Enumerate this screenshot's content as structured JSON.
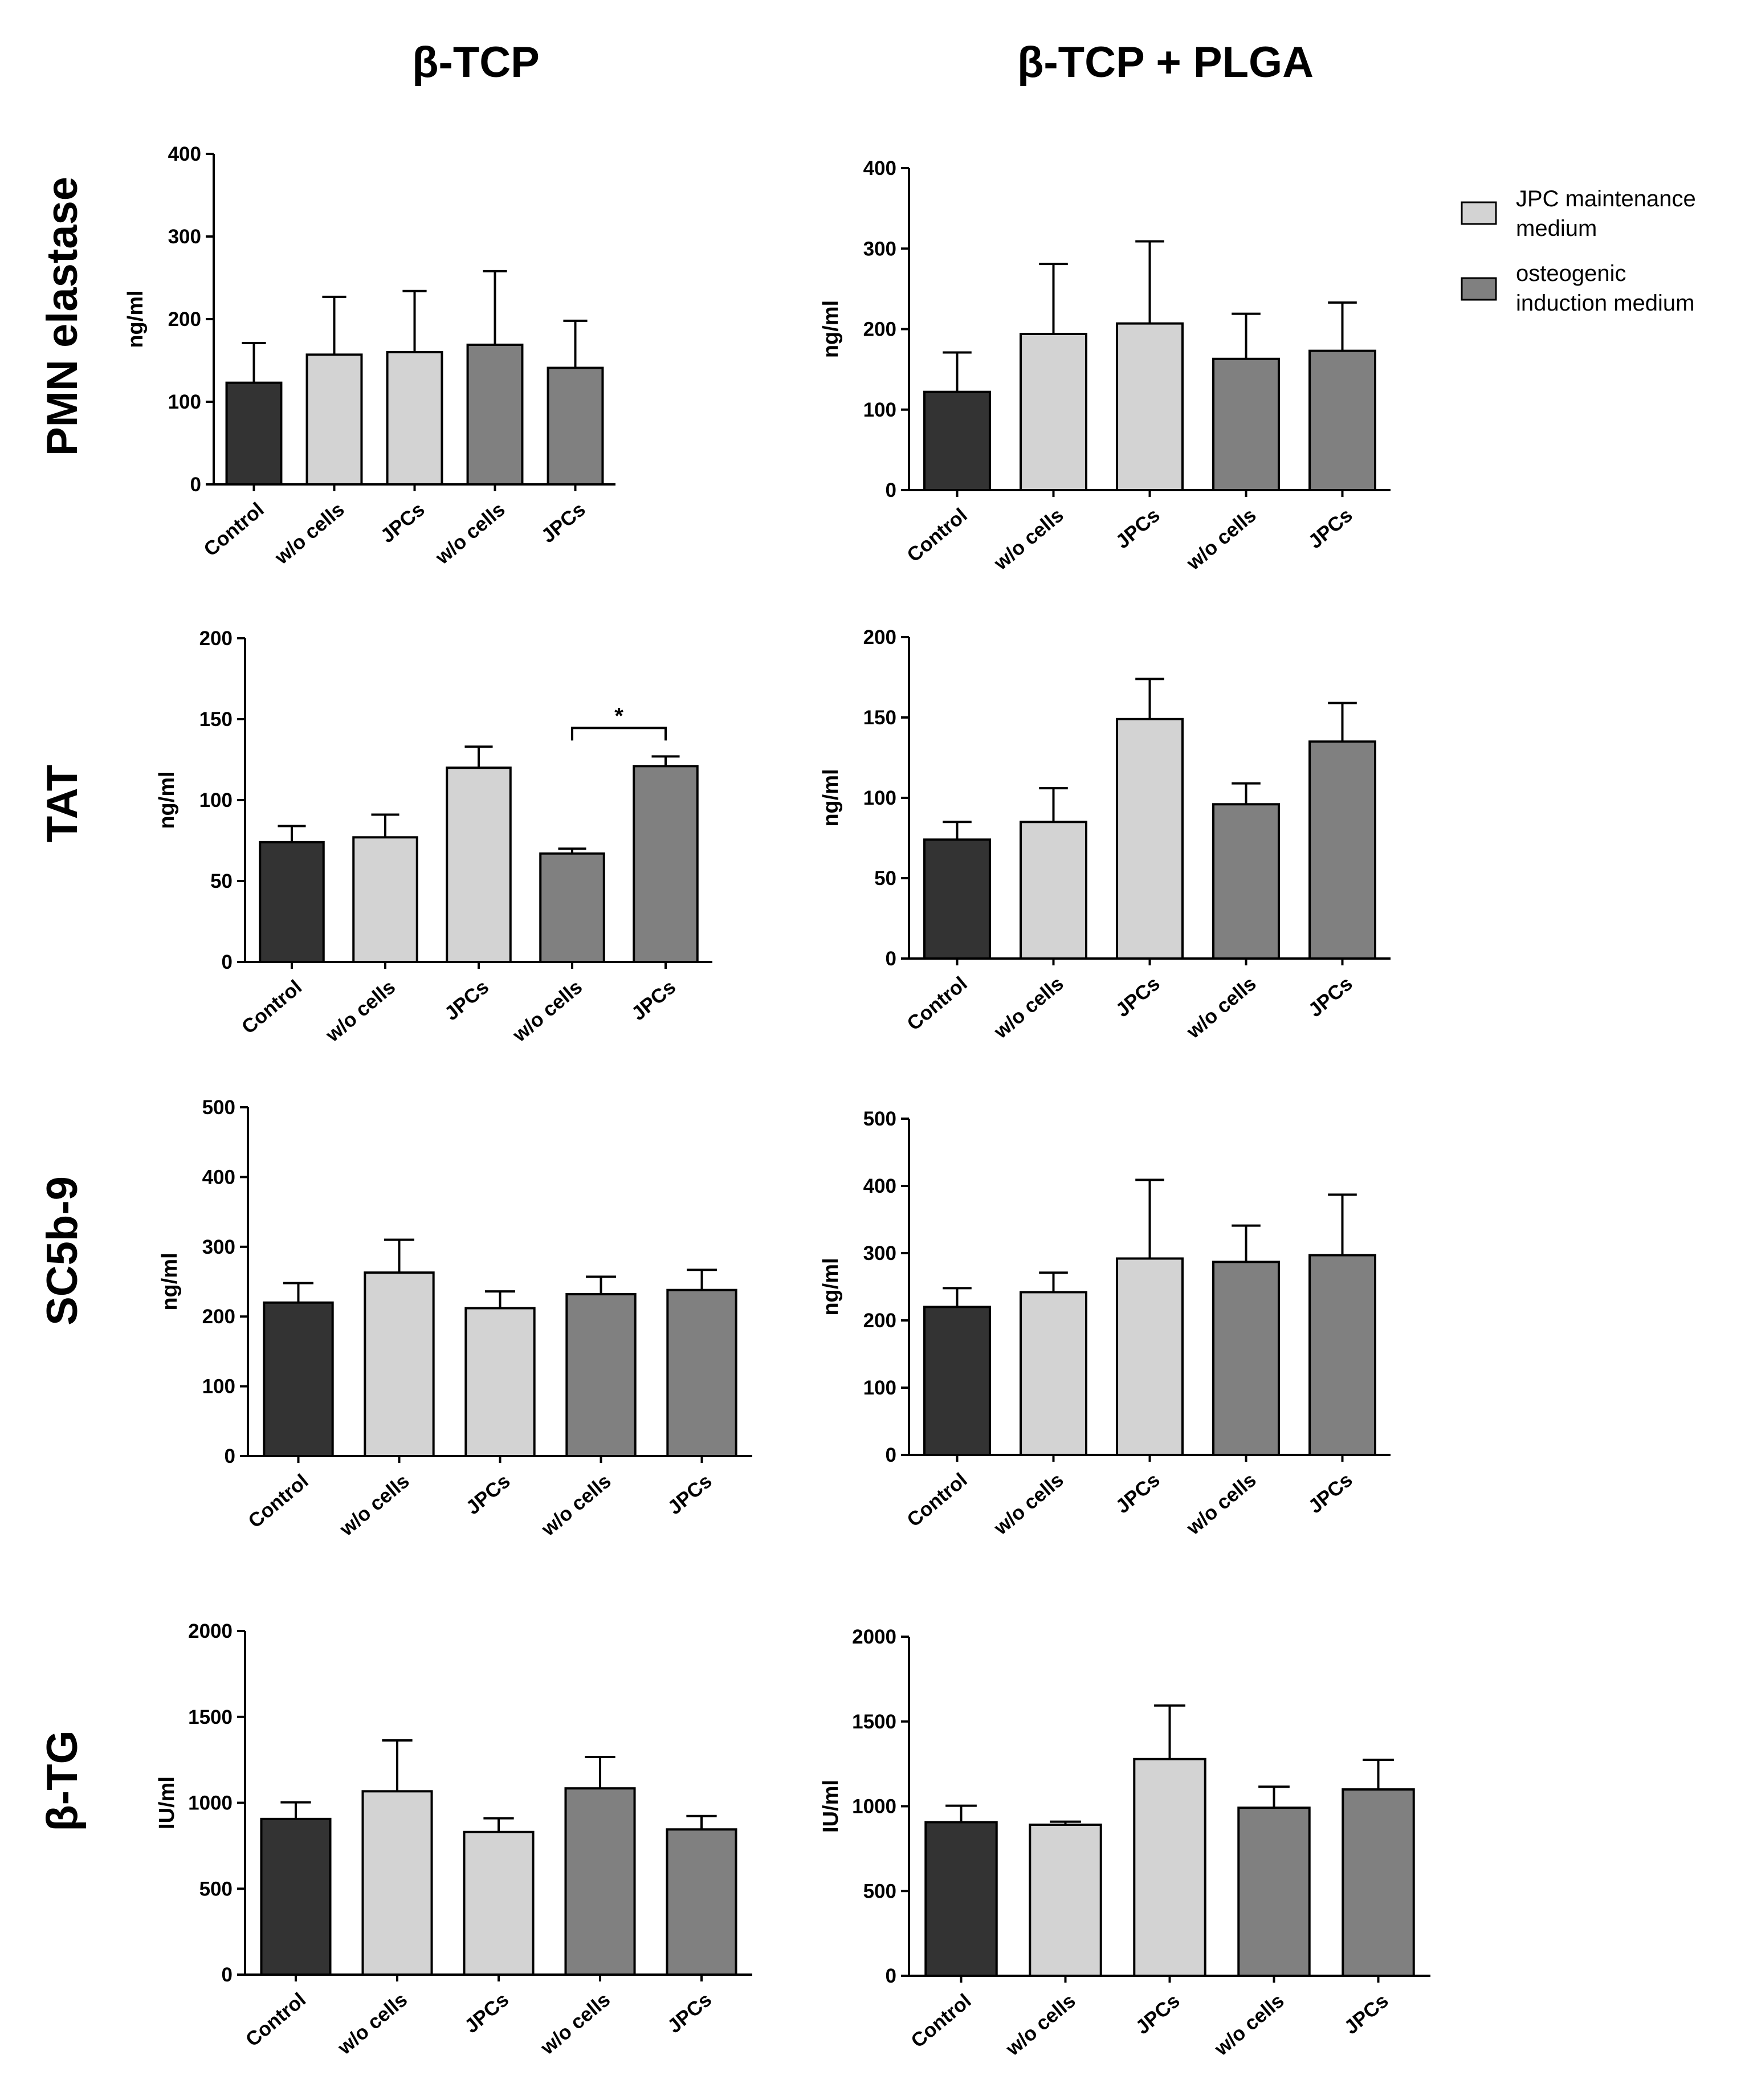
{
  "column_titles": [
    "β-TCP",
    "β-TCP + PLGA"
  ],
  "row_titles": [
    "PMN elastase",
    "TAT",
    "SC5b-9",
    "β-TG"
  ],
  "legend": {
    "items": [
      {
        "label_lines": [
          "JPC maintenance",
          "medium"
        ],
        "color": "#d3d3d3"
      },
      {
        "label_lines": [
          "osteogenic",
          "induction medium"
        ],
        "color": "#808080"
      }
    ]
  },
  "colors": {
    "control": "#333333",
    "jpc_maintenance": "#d3d3d3",
    "osteogenic": "#808080"
  },
  "chart_data": [
    {
      "type": "bar",
      "id": "pmn-btcp",
      "title": "PMN elastase — β-TCP",
      "ylabel": "ng/ml",
      "ylim": [
        0,
        400
      ],
      "yticks": [
        0,
        100,
        200,
        300,
        400
      ],
      "categories": [
        "Control",
        "w/o cells",
        "JPCs",
        "w/o cells",
        "JPCs"
      ],
      "values": [
        123,
        157,
        160,
        169,
        141
      ],
      "errors": [
        48,
        70,
        74,
        89,
        57
      ],
      "groups": [
        "control",
        "jpc_maintenance",
        "jpc_maintenance",
        "osteogenic",
        "osteogenic"
      ],
      "significance": []
    },
    {
      "type": "bar",
      "id": "pmn-plga",
      "title": "PMN elastase — β-TCP + PLGA",
      "ylabel": "ng/ml",
      "ylim": [
        0,
        400
      ],
      "yticks": [
        0,
        100,
        200,
        300,
        400
      ],
      "categories": [
        "Control",
        "w/o cells",
        "JPCs",
        "w/o cells",
        "JPCs"
      ],
      "values": [
        122,
        194,
        207,
        163,
        173
      ],
      "errors": [
        49,
        87,
        102,
        56,
        60
      ],
      "groups": [
        "control",
        "jpc_maintenance",
        "jpc_maintenance",
        "osteogenic",
        "osteogenic"
      ],
      "significance": []
    },
    {
      "type": "bar",
      "id": "tat-btcp",
      "title": "TAT — β-TCP",
      "ylabel": "ng/ml",
      "ylim": [
        0,
        200
      ],
      "yticks": [
        0,
        50,
        100,
        150,
        200
      ],
      "categories": [
        "Control",
        "w/o cells",
        "JPCs",
        "w/o cells",
        "JPCs"
      ],
      "values": [
        74,
        77,
        120,
        67,
        121
      ],
      "errors": [
        10,
        14,
        13,
        3,
        6
      ],
      "groups": [
        "control",
        "jpc_maintenance",
        "jpc_maintenance",
        "osteogenic",
        "osteogenic"
      ],
      "significance": [
        {
          "from": 3,
          "to": 4,
          "label": "*"
        }
      ]
    },
    {
      "type": "bar",
      "id": "tat-plga",
      "title": "TAT — β-TCP + PLGA",
      "ylabel": "ng/ml",
      "ylim": [
        0,
        200
      ],
      "yticks": [
        0,
        50,
        100,
        150,
        200
      ],
      "categories": [
        "Control",
        "w/o cells",
        "JPCs",
        "w/o cells",
        "JPCs"
      ],
      "values": [
        74,
        85,
        149,
        96,
        135
      ],
      "errors": [
        11,
        21,
        25,
        13,
        24
      ],
      "groups": [
        "control",
        "jpc_maintenance",
        "jpc_maintenance",
        "osteogenic",
        "osteogenic"
      ],
      "significance": []
    },
    {
      "type": "bar",
      "id": "sc5b9-btcp",
      "title": "SC5b-9 — β-TCP",
      "ylabel": "ng/ml",
      "ylim": [
        0,
        500
      ],
      "yticks": [
        0,
        100,
        200,
        300,
        400,
        500
      ],
      "categories": [
        "Control",
        "w/o cells",
        "JPCs",
        "w/o cells",
        "JPCs"
      ],
      "values": [
        220,
        263,
        212,
        232,
        238
      ],
      "errors": [
        28,
        47,
        24,
        25,
        29
      ],
      "groups": [
        "control",
        "jpc_maintenance",
        "jpc_maintenance",
        "osteogenic",
        "osteogenic"
      ],
      "significance": []
    },
    {
      "type": "bar",
      "id": "sc5b9-plga",
      "title": "SC5b-9 — β-TCP + PLGA",
      "ylabel": "ng/ml",
      "ylim": [
        0,
        500
      ],
      "yticks": [
        0,
        100,
        200,
        300,
        400,
        500
      ],
      "categories": [
        "Control",
        "w/o cells",
        "JPCs",
        "w/o cells",
        "JPCs"
      ],
      "values": [
        220,
        242,
        292,
        287,
        297
      ],
      "errors": [
        28,
        29,
        117,
        54,
        90
      ],
      "groups": [
        "control",
        "jpc_maintenance",
        "jpc_maintenance",
        "osteogenic",
        "osteogenic"
      ],
      "significance": []
    },
    {
      "type": "bar",
      "id": "btg-btcp",
      "title": "β-TG — β-TCP",
      "ylabel": "IU/ml",
      "ylim": [
        0,
        2000
      ],
      "yticks": [
        0,
        500,
        1000,
        1500,
        2000
      ],
      "categories": [
        "Control",
        "w/o cells",
        "JPCs",
        "w/o cells",
        "JPCs"
      ],
      "values": [
        906,
        1067,
        830,
        1084,
        845
      ],
      "errors": [
        97,
        296,
        80,
        183,
        78
      ],
      "groups": [
        "control",
        "jpc_maintenance",
        "jpc_maintenance",
        "osteogenic",
        "osteogenic"
      ],
      "significance": []
    },
    {
      "type": "bar",
      "id": "btg-plga",
      "title": "β-TG — β-TCP + PLGA",
      "ylabel": "IU/ml",
      "ylim": [
        0,
        2000
      ],
      "yticks": [
        0,
        500,
        1000,
        1500,
        2000
      ],
      "categories": [
        "Control",
        "w/o cells",
        "JPCs",
        "w/o cells",
        "JPCs"
      ],
      "values": [
        906,
        891,
        1278,
        991,
        1099
      ],
      "errors": [
        97,
        18,
        316,
        124,
        175
      ],
      "groups": [
        "control",
        "jpc_maintenance",
        "jpc_maintenance",
        "osteogenic",
        "osteogenic"
      ],
      "significance": []
    }
  ]
}
